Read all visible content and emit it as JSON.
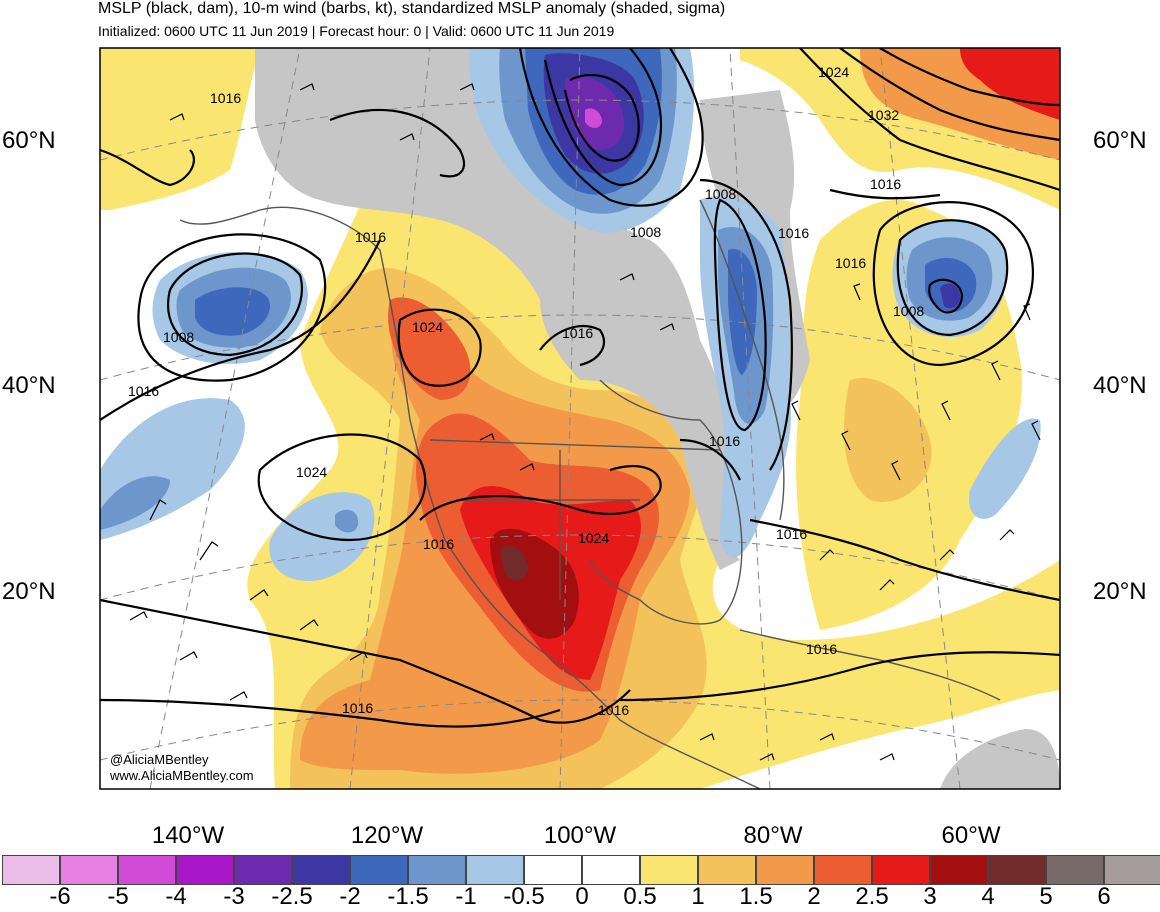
{
  "header": {
    "title": "MSLP (black, dam), 10-m wind (barbs, kt), standardized MSLP anomaly (shaded, sigma)",
    "subtitle": "Initialized: 0600 UTC 11 Jun 2019 | Forecast hour: 0 | Valid: 0600 UTC 11 Jun 2019"
  },
  "map": {
    "lat_labels": [
      "60°N",
      "40°N",
      "20°N"
    ],
    "lon_labels": [
      "140°W",
      "120°W",
      "100°W",
      "80°W",
      "60°W"
    ],
    "contour_labels": [
      "1016",
      "1008",
      "1016",
      "1016",
      "1024",
      "1016",
      "1024",
      "1016",
      "1024",
      "1016",
      "1016",
      "1008",
      "1016",
      "1016",
      "1008",
      "1024",
      "1032",
      "1016",
      "1016",
      "1016",
      "1008",
      "1016",
      "1016"
    ],
    "credit_handle": "@AliciaMBentley",
    "credit_site": "www.AliciaMBentley.com"
  },
  "colorbar": {
    "ticks": [
      "-6",
      "-5",
      "-4",
      "-3",
      "-2.5",
      "-2",
      "-1.5",
      "-1",
      "-0.5",
      "0",
      "0.5",
      "1",
      "1.5",
      "2",
      "2.5",
      "3",
      "4",
      "5",
      "6"
    ],
    "colors": [
      "#ecbce8",
      "#e681e3",
      "#d24ad8",
      "#a918c8",
      "#6e2aaf",
      "#3d37a3",
      "#3d68bb",
      "#6d96cc",
      "#a6c7e5",
      "#ffffff",
      "#ffffff",
      "#fbe571",
      "#f4c25b",
      "#f29a4a",
      "#ec5d31",
      "#e61a19",
      "#a30e0e",
      "#712b2b",
      "#786a69",
      "#a69c9b"
    ]
  }
}
